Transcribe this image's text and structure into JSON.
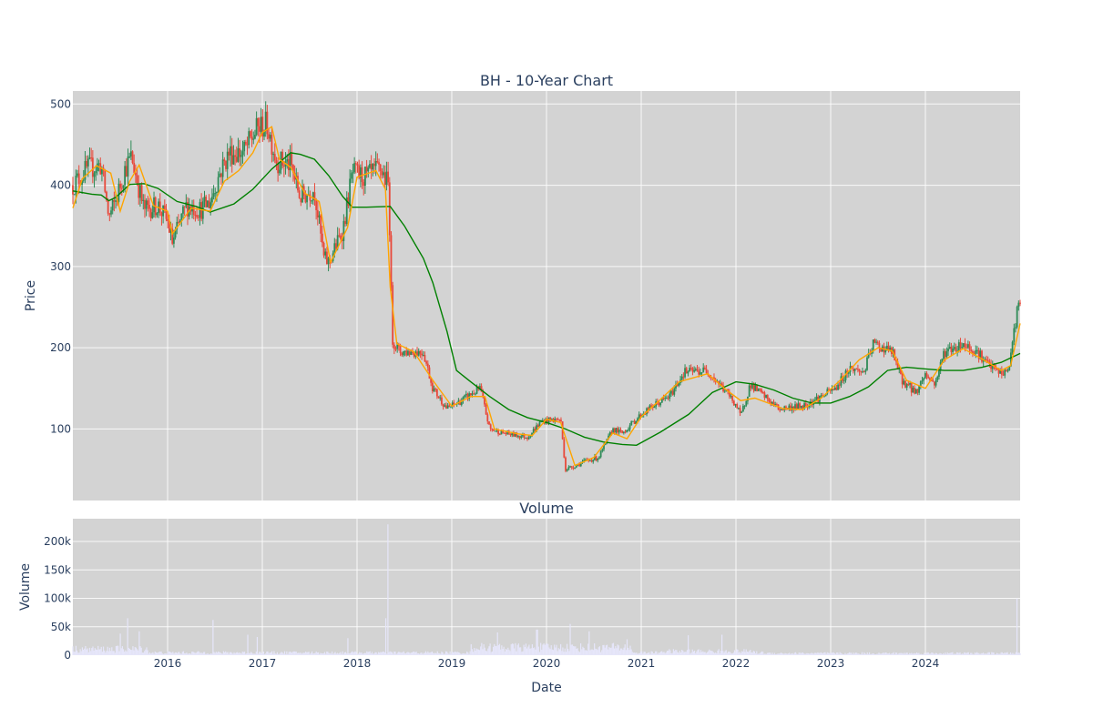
{
  "chart_data": {
    "type": "candlestick",
    "title": "BH - 10-Year Chart",
    "colors": {
      "plot_bg": "#d3d3d3",
      "grid": "#ffffff",
      "up": "#2e8b57",
      "down": "#e8483a",
      "ma_short": "#ffa500",
      "ma_long": "#008000",
      "volume": "#e6e6fa",
      "text": "#2a3f5f"
    },
    "price_panel": {
      "ylabel": "Price",
      "ylim": [
        12,
        516
      ],
      "yticks": [
        100,
        200,
        300,
        400,
        500
      ],
      "ma_short_series": [
        [
          2015.0,
          372
        ],
        [
          2015.1,
          408
        ],
        [
          2015.25,
          424
        ],
        [
          2015.4,
          415
        ],
        [
          2015.5,
          368
        ],
        [
          2015.6,
          405
        ],
        [
          2015.7,
          425
        ],
        [
          2015.85,
          375
        ],
        [
          2016.0,
          368
        ],
        [
          2016.05,
          340
        ],
        [
          2016.25,
          372
        ],
        [
          2016.45,
          368
        ],
        [
          2016.6,
          405
        ],
        [
          2016.75,
          418
        ],
        [
          2016.9,
          440
        ],
        [
          2017.0,
          465
        ],
        [
          2017.1,
          472
        ],
        [
          2017.18,
          432
        ],
        [
          2017.3,
          422
        ],
        [
          2017.45,
          390
        ],
        [
          2017.6,
          380
        ],
        [
          2017.72,
          305
        ],
        [
          2017.9,
          348
        ],
        [
          2018.0,
          410
        ],
        [
          2018.2,
          418
        ],
        [
          2018.3,
          395
        ],
        [
          2018.35,
          275
        ],
        [
          2018.42,
          205
        ],
        [
          2018.6,
          195
        ],
        [
          2018.8,
          160
        ],
        [
          2019.0,
          128
        ],
        [
          2019.2,
          140
        ],
        [
          2019.35,
          140
        ],
        [
          2019.45,
          100
        ],
        [
          2019.7,
          94
        ],
        [
          2019.85,
          92
        ],
        [
          2020.0,
          112
        ],
        [
          2020.15,
          108
        ],
        [
          2020.3,
          55
        ],
        [
          2020.5,
          65
        ],
        [
          2020.7,
          95
        ],
        [
          2020.85,
          88
        ],
        [
          2021.0,
          115
        ],
        [
          2021.2,
          136
        ],
        [
          2021.4,
          158
        ],
        [
          2021.7,
          168
        ],
        [
          2021.9,
          148
        ],
        [
          2022.05,
          135
        ],
        [
          2022.2,
          138
        ],
        [
          2022.5,
          125
        ],
        [
          2022.7,
          124
        ],
        [
          2022.9,
          138
        ],
        [
          2023.1,
          160
        ],
        [
          2023.3,
          185
        ],
        [
          2023.5,
          200
        ],
        [
          2023.65,
          196
        ],
        [
          2023.8,
          160
        ],
        [
          2024.0,
          150
        ],
        [
          2024.2,
          185
        ],
        [
          2024.4,
          199
        ],
        [
          2024.6,
          186
        ],
        [
          2024.8,
          172
        ],
        [
          2024.9,
          178
        ],
        [
          2025.0,
          230
        ]
      ],
      "ma_long_series": [
        [
          2015.0,
          393
        ],
        [
          2015.2,
          389
        ],
        [
          2015.3,
          388
        ],
        [
          2015.38,
          381
        ],
        [
          2015.45,
          385
        ],
        [
          2015.6,
          401
        ],
        [
          2015.75,
          402
        ],
        [
          2015.9,
          396
        ],
        [
          2016.1,
          380
        ],
        [
          2016.3,
          374
        ],
        [
          2016.45,
          367
        ],
        [
          2016.7,
          377
        ],
        [
          2016.9,
          395
        ],
        [
          2017.1,
          420
        ],
        [
          2017.3,
          440
        ],
        [
          2017.4,
          438
        ],
        [
          2017.55,
          432
        ],
        [
          2017.7,
          412
        ],
        [
          2017.85,
          386
        ],
        [
          2017.95,
          373
        ],
        [
          2018.1,
          373
        ],
        [
          2018.35,
          374
        ],
        [
          2018.5,
          350
        ],
        [
          2018.7,
          310
        ],
        [
          2018.8,
          280
        ],
        [
          2018.95,
          220
        ],
        [
          2019.05,
          172
        ],
        [
          2019.2,
          158
        ],
        [
          2019.4,
          140
        ],
        [
          2019.6,
          124
        ],
        [
          2019.8,
          114
        ],
        [
          2020.0,
          108
        ],
        [
          2020.2,
          100
        ],
        [
          2020.4,
          90
        ],
        [
          2020.6,
          84
        ],
        [
          2020.8,
          81
        ],
        [
          2020.95,
          80
        ],
        [
          2021.2,
          96
        ],
        [
          2021.5,
          118
        ],
        [
          2021.75,
          145
        ],
        [
          2022.0,
          158
        ],
        [
          2022.2,
          155
        ],
        [
          2022.4,
          148
        ],
        [
          2022.6,
          138
        ],
        [
          2022.8,
          132
        ],
        [
          2023.0,
          132
        ],
        [
          2023.2,
          140
        ],
        [
          2023.4,
          152
        ],
        [
          2023.6,
          172
        ],
        [
          2023.8,
          176
        ],
        [
          2024.0,
          174
        ],
        [
          2024.2,
          172
        ],
        [
          2024.4,
          172
        ],
        [
          2024.6,
          176
        ],
        [
          2024.8,
          182
        ],
        [
          2025.0,
          193
        ]
      ],
      "price_anchors": [
        [
          2015.0,
          400
        ],
        [
          2015.15,
          420
        ],
        [
          2015.3,
          425
        ],
        [
          2015.38,
          360
        ],
        [
          2015.45,
          380
        ],
        [
          2015.55,
          420
        ],
        [
          2015.62,
          435
        ],
        [
          2015.75,
          370
        ],
        [
          2015.9,
          375
        ],
        [
          2016.0,
          355
        ],
        [
          2016.05,
          330
        ],
        [
          2016.2,
          375
        ],
        [
          2016.35,
          370
        ],
        [
          2016.45,
          380
        ],
        [
          2016.55,
          415
        ],
        [
          2016.65,
          440
        ],
        [
          2016.8,
          440
        ],
        [
          2016.95,
          470
        ],
        [
          2017.05,
          475
        ],
        [
          2017.15,
          430
        ],
        [
          2017.3,
          425
        ],
        [
          2017.4,
          385
        ],
        [
          2017.55,
          395
        ],
        [
          2017.65,
          310
        ],
        [
          2017.7,
          305
        ],
        [
          2017.85,
          345
        ],
        [
          2017.95,
          415
        ],
        [
          2018.1,
          410
        ],
        [
          2018.25,
          420
        ],
        [
          2018.33,
          400
        ],
        [
          2018.35,
          330
        ],
        [
          2018.37,
          210
        ],
        [
          2018.45,
          195
        ],
        [
          2018.7,
          195
        ],
        [
          2018.8,
          150
        ],
        [
          2018.95,
          125
        ],
        [
          2019.1,
          135
        ],
        [
          2019.3,
          150
        ],
        [
          2019.4,
          100
        ],
        [
          2019.55,
          95
        ],
        [
          2019.8,
          90
        ],
        [
          2019.95,
          110
        ],
        [
          2020.15,
          112
        ],
        [
          2020.2,
          50
        ],
        [
          2020.4,
          60
        ],
        [
          2020.55,
          65
        ],
        [
          2020.7,
          100
        ],
        [
          2020.8,
          95
        ],
        [
          2021.0,
          118
        ],
        [
          2021.15,
          130
        ],
        [
          2021.3,
          140
        ],
        [
          2021.45,
          170
        ],
        [
          2021.7,
          172
        ],
        [
          2021.9,
          145
        ],
        [
          2022.0,
          130
        ],
        [
          2022.05,
          115
        ],
        [
          2022.15,
          155
        ],
        [
          2022.3,
          140
        ],
        [
          2022.45,
          125
        ],
        [
          2022.7,
          128
        ],
        [
          2022.9,
          140
        ],
        [
          2023.05,
          150
        ],
        [
          2023.2,
          175
        ],
        [
          2023.35,
          170
        ],
        [
          2023.45,
          205
        ],
        [
          2023.65,
          195
        ],
        [
          2023.75,
          160
        ],
        [
          2023.9,
          145
        ],
        [
          2024.0,
          168
        ],
        [
          2024.1,
          155
        ],
        [
          2024.2,
          195
        ],
        [
          2024.4,
          205
        ],
        [
          2024.55,
          195
        ],
        [
          2024.65,
          180
        ],
        [
          2024.8,
          168
        ],
        [
          2024.88,
          172
        ],
        [
          2024.92,
          210
        ],
        [
          2024.97,
          245
        ],
        [
          2025.0,
          262
        ]
      ]
    },
    "volume_panel": {
      "title": "Volume",
      "ylabel": "Volume",
      "ylim": [
        0,
        240000
      ],
      "yticks": [
        0,
        50000,
        100000,
        150000,
        200000
      ],
      "ytick_labels": [
        "0",
        "50k",
        "100k",
        "150k",
        "200k"
      ],
      "spikes": [
        [
          2015.58,
          65000
        ],
        [
          2015.5,
          38000
        ],
        [
          2015.7,
          42000
        ],
        [
          2016.48,
          62000
        ],
        [
          2016.85,
          36000
        ],
        [
          2016.95,
          32000
        ],
        [
          2017.9,
          30000
        ],
        [
          2018.33,
          230000
        ],
        [
          2018.3,
          65000
        ],
        [
          2019.48,
          40000
        ],
        [
          2019.9,
          45000
        ],
        [
          2020.25,
          55000
        ],
        [
          2020.45,
          42000
        ],
        [
          2020.85,
          28000
        ],
        [
          2021.5,
          35000
        ],
        [
          2021.85,
          36000
        ],
        [
          2024.97,
          100000
        ]
      ]
    },
    "xaxis": {
      "label": "Date",
      "range": [
        2015.0,
        2025.0
      ],
      "ticks": [
        "2016",
        "2017",
        "2018",
        "2019",
        "2020",
        "2021",
        "2022",
        "2023",
        "2024"
      ]
    }
  }
}
